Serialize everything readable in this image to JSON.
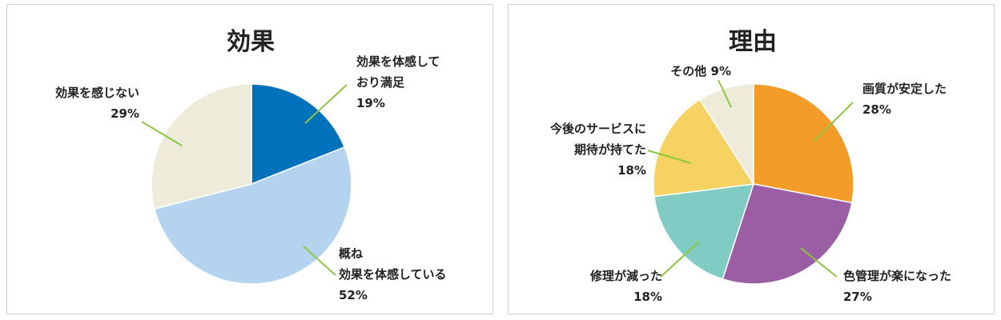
{
  "chart_data": [
    {
      "type": "pie",
      "title": "効果",
      "slices": [
        {
          "label": [
            "効果を体感して",
            "おり満足"
          ],
          "value": 19,
          "value_text": "19%",
          "color": "#0072bc"
        },
        {
          "label": [
            "概ね",
            "効果を体感している"
          ],
          "value": 52,
          "value_text": "52%",
          "color": "#b3d3ee"
        },
        {
          "label": [
            "効果を感じない"
          ],
          "value": 29,
          "value_text": "29%",
          "color": "#eeebda"
        }
      ],
      "leader_color": "#8dc63f"
    },
    {
      "type": "pie",
      "title": "理由",
      "slices": [
        {
          "label": [
            "画質が安定した"
          ],
          "value": 28,
          "value_text": "28%",
          "color": "#f39c28"
        },
        {
          "label": [
            "色管理が楽になった"
          ],
          "value": 27,
          "value_text": "27%",
          "color": "#9b5ea4"
        },
        {
          "label": [
            "修理が減った"
          ],
          "value": 18,
          "value_text": "18%",
          "color": "#80cbc4"
        },
        {
          "label": [
            "今後のサービスに",
            "期待が持てた"
          ],
          "value": 18,
          "value_text": "18%",
          "color": "#f5d262"
        },
        {
          "label": [
            "その他"
          ],
          "value": 9,
          "value_text": "9%",
          "color": "#eeebda"
        }
      ],
      "leader_color": "#8dc63f"
    }
  ]
}
